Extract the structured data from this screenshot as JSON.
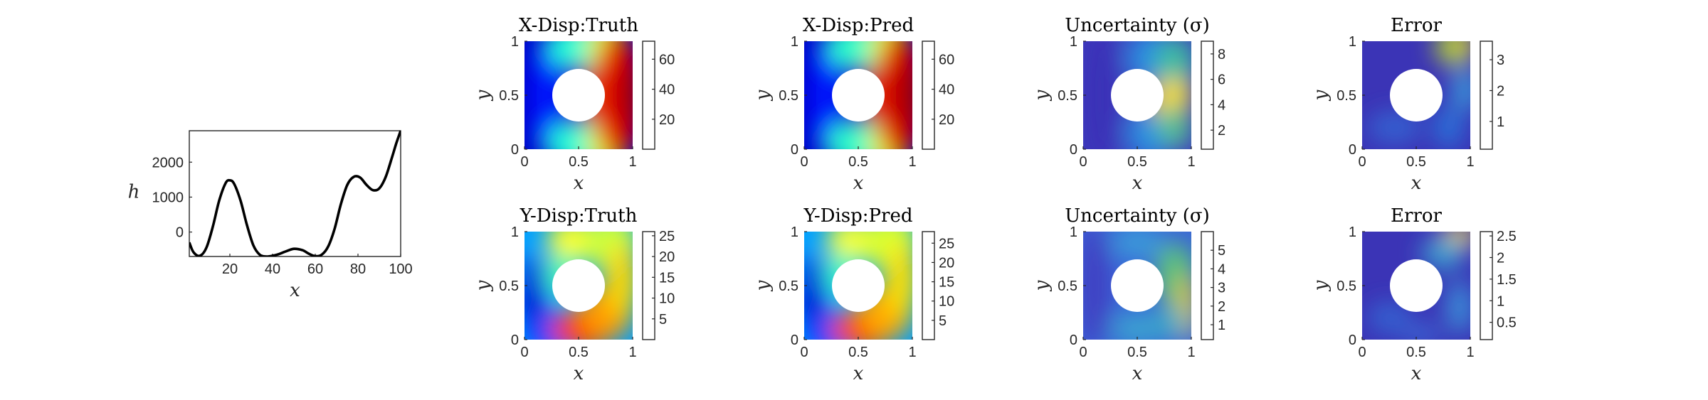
{
  "chart_data": [
    {
      "type": "line",
      "xlabel": "x",
      "ylabel": "h",
      "xlim": [
        1,
        100
      ],
      "ylim": [
        -700,
        2900
      ],
      "xticks": [
        "20",
        "40",
        "60",
        "80",
        "100"
      ],
      "yticks": [
        "0",
        "1000",
        "2000"
      ],
      "x": [
        1,
        3,
        6,
        9,
        12,
        15,
        18,
        20,
        22,
        25,
        28,
        31,
        34,
        37,
        40,
        43,
        46,
        50,
        54,
        57,
        60,
        63,
        66,
        69,
        72,
        75,
        78,
        81,
        84,
        87,
        90,
        93,
        96,
        98,
        100
      ],
      "values": [
        -300,
        -580,
        -680,
        -450,
        150,
        900,
        1400,
        1480,
        1380,
        900,
        200,
        -380,
        -650,
        -700,
        -680,
        -630,
        -560,
        -480,
        -520,
        -620,
        -690,
        -650,
        -420,
        80,
        800,
        1350,
        1580,
        1560,
        1350,
        1200,
        1250,
        1580,
        2150,
        2550,
        2900
      ]
    },
    {
      "type": "heatmap",
      "title": "X-Disp:Truth",
      "xlabel": "x",
      "ylabel": "y",
      "xticks": [
        "0",
        "0.5",
        "1"
      ],
      "yticks": [
        "0",
        "0.5",
        "1"
      ],
      "colormap": "jet",
      "clim": [
        0,
        72
      ],
      "cbar_ticks": [
        "20",
        "40",
        "60"
      ]
    },
    {
      "type": "heatmap",
      "title": "X-Disp:Pred",
      "xlabel": "x",
      "ylabel": "y",
      "xticks": [
        "0",
        "0.5",
        "1"
      ],
      "yticks": [
        "0",
        "0.5",
        "1"
      ],
      "colormap": "jet",
      "clim": [
        0,
        72
      ],
      "cbar_ticks": [
        "20",
        "40",
        "60"
      ]
    },
    {
      "type": "heatmap",
      "title": "Uncertainty (σ)",
      "xlabel": "x",
      "ylabel": "y",
      "xticks": [
        "0",
        "0.5",
        "1"
      ],
      "yticks": [
        "0",
        "0.5",
        "1"
      ],
      "colormap": "parula",
      "clim": [
        0.5,
        9
      ],
      "cbar_ticks": [
        "2",
        "4",
        "6",
        "8"
      ]
    },
    {
      "type": "heatmap",
      "title": "Error",
      "xlabel": "x",
      "ylabel": "y",
      "xticks": [
        "0",
        "0.5",
        "1"
      ],
      "yticks": [
        "0",
        "0.5",
        "1"
      ],
      "colormap": "parula",
      "clim": [
        0.1,
        3.6
      ],
      "cbar_ticks": [
        "1",
        "2",
        "3"
      ]
    },
    {
      "type": "heatmap",
      "title": "Y-Disp:Truth",
      "xlabel": "x",
      "ylabel": "y",
      "xticks": [
        "0",
        "0.5",
        "1"
      ],
      "yticks": [
        "0",
        "0.5",
        "1"
      ],
      "colormap": "jet",
      "clim": [
        0,
        26
      ],
      "cbar_ticks": [
        "5",
        "10",
        "15",
        "20",
        "25"
      ]
    },
    {
      "type": "heatmap",
      "title": "Y-Disp:Pred",
      "xlabel": "x",
      "ylabel": "y",
      "xticks": [
        "0",
        "0.5",
        "1"
      ],
      "yticks": [
        "0",
        "0.5",
        "1"
      ],
      "colormap": "jet",
      "clim": [
        0,
        28
      ],
      "cbar_ticks": [
        "5",
        "10",
        "15",
        "20",
        "25"
      ]
    },
    {
      "type": "heatmap",
      "title": "Uncertainty (σ)",
      "xlabel": "x",
      "ylabel": "y",
      "xticks": [
        "0",
        "0.5",
        "1"
      ],
      "yticks": [
        "0",
        "0.5",
        "1"
      ],
      "colormap": "parula",
      "clim": [
        0.2,
        6
      ],
      "cbar_ticks": [
        "1",
        "2",
        "3",
        "4",
        "5"
      ]
    },
    {
      "type": "heatmap",
      "title": "Error",
      "xlabel": "x",
      "ylabel": "y",
      "xticks": [
        "0",
        "0.5",
        "1"
      ],
      "yticks": [
        "0",
        "0.5",
        "1"
      ],
      "colormap": "parula",
      "clim": [
        0.1,
        2.6
      ],
      "cbar_ticks": [
        "0.5",
        "1",
        "1.5",
        "2",
        "2.5"
      ]
    }
  ]
}
